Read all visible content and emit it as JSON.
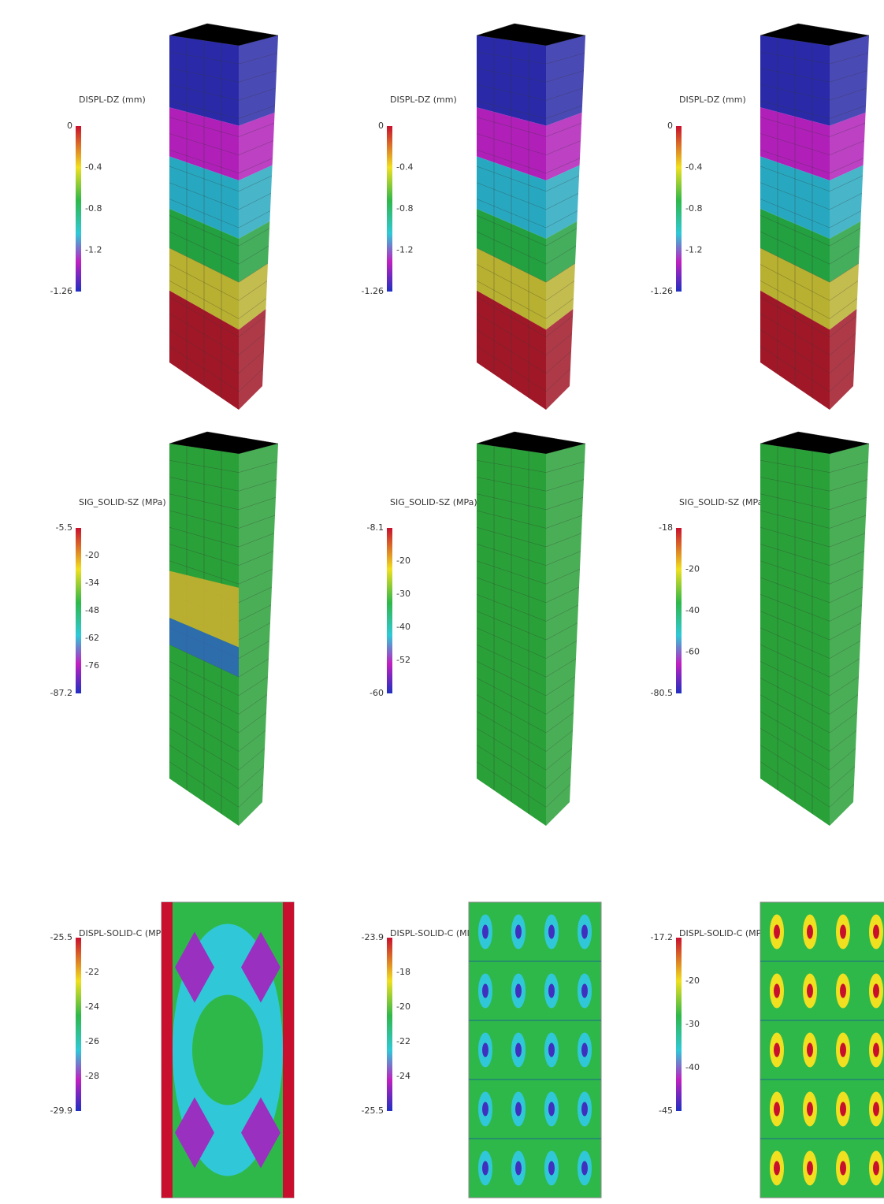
{
  "panels": [
    {
      "title": "DISPL-DZ (mm)",
      "top_label": "0",
      "bottom_label": "-1.26",
      "ticks": [
        "-0.4",
        "-0.8",
        "-1.2"
      ]
    },
    {
      "title": "DISPL-DZ (mm)",
      "top_label": "0",
      "bottom_label": "-1.26",
      "ticks": [
        "-0.4",
        "-0.8",
        "-1.2"
      ]
    },
    {
      "title": "DISPL-DZ (mm)",
      "top_label": "0",
      "bottom_label": "-1.26",
      "ticks": [
        "-0.4",
        "-0.8",
        "-1.2"
      ]
    },
    {
      "title": "SIG_SOLID-SZ (MPa)",
      "top_label": "-5.5",
      "bottom_label": "-87.2",
      "ticks": [
        "-20",
        "-34",
        "-48",
        "-62",
        "-76"
      ]
    },
    {
      "title": "SIG_SOLID-SZ (MPa)",
      "top_label": "-8.1",
      "bottom_label": "-60",
      "ticks": [
        "-20",
        "-30",
        "-40",
        "-52"
      ]
    },
    {
      "title": "SIG_SOLID-SZ (MPa)",
      "top_label": "-18",
      "bottom_label": "-80.5",
      "ticks": [
        "-20",
        "-40",
        "-60"
      ]
    },
    {
      "title": "DISPL-SOLID-C (MPa)",
      "top_label": "-25.5",
      "bottom_label": "-29.9",
      "ticks": [
        "-22",
        "-24",
        "-26",
        "-28"
      ]
    },
    {
      "title": "DISPL-SOLID-C (MPa)",
      "top_label": "-23.9",
      "bottom_label": "-25.5",
      "ticks": [
        "-18",
        "-20",
        "-22",
        "-24"
      ]
    },
    {
      "title": "DISPL-SOLID-C (MPa)",
      "top_label": "-17.2",
      "bottom_label": "-45",
      "ticks": [
        "-20",
        "-30",
        "-40"
      ]
    }
  ]
}
